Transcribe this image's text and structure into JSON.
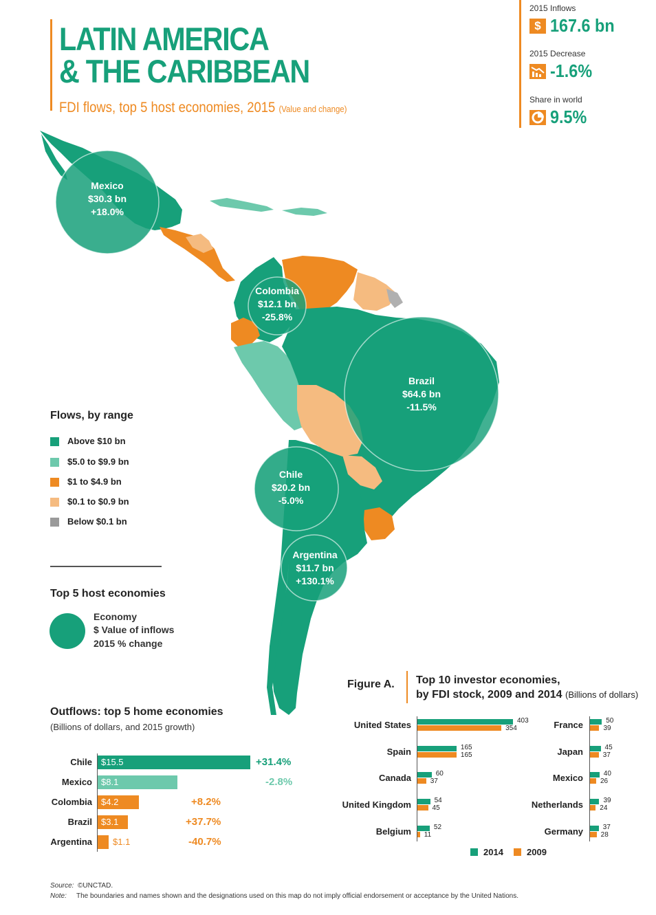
{
  "header": {
    "title_line1": "LATIN AMERICA",
    "title_line2": "& THE CARIBBEAN",
    "subtitle": "FDI flows, top 5 host economies, 2015",
    "subtitle_note": "(Value and change)"
  },
  "stats": [
    {
      "label": "2015 Inflows",
      "value": "167.6 bn",
      "icon": "dollar-icon"
    },
    {
      "label": "2015 Decrease",
      "value": "-1.6%",
      "icon": "decrease-chart-icon"
    },
    {
      "label": "Share in world",
      "value": "9.5%",
      "icon": "pie-share-icon"
    }
  ],
  "colors": {
    "above_10": "#17a07a",
    "range_5_9": "#6dc9ac",
    "range_1_4": "#ee8a22",
    "range_01_09": "#f5bb80",
    "below_01": "#9a9a9a",
    "accent": "#ee8a22",
    "brand": "#17a07a"
  },
  "legend": {
    "title": "Flows, by range",
    "items": [
      {
        "label": "Above $10 bn",
        "color": "#17a07a"
      },
      {
        "label": "$5.0 to $9.9 bn",
        "color": "#6dc9ac"
      },
      {
        "label": "$1 to $4.9 bn",
        "color": "#ee8a22"
      },
      {
        "label": "$0.1 to $0.9 bn",
        "color": "#f5bb80"
      },
      {
        "label": "Below $0.1 bn",
        "color": "#9a9a9a"
      }
    ]
  },
  "top5": {
    "title": "Top 5 host economies",
    "key_lines": [
      "Economy",
      "$ Value of inflows",
      "2015 % change"
    ],
    "economies": [
      {
        "name": "Mexico",
        "value": "$30.3 bn",
        "change": "+18.0%"
      },
      {
        "name": "Colombia",
        "value": "$12.1 bn",
        "change": "-25.8%"
      },
      {
        "name": "Brazil",
        "value": "$64.6 bn",
        "change": "-11.5%"
      },
      {
        "name": "Chile",
        "value": "$20.2 bn",
        "change": "-5.0%"
      },
      {
        "name": "Argentina",
        "value": "$11.7 bn",
        "change": "+130.1%"
      }
    ]
  },
  "chart_data": [
    {
      "type": "bar",
      "title": "Outflows: top 5 home economies",
      "subtitle": "(Billions of dollars, and 2015 growth)",
      "categories": [
        "Chile",
        "Mexico",
        "Colombia",
        "Brazil",
        "Argentina"
      ],
      "values": [
        15.5,
        8.1,
        4.2,
        3.1,
        1.1
      ],
      "value_labels": [
        "$15.5",
        "$8.1",
        "$4.2",
        "$3.1",
        "$1.1"
      ],
      "growth": [
        "+31.4%",
        "-2.8%",
        "+8.2%",
        "+37.7%",
        "-40.7%"
      ],
      "bar_colors": [
        "#17a07a",
        "#6dc9ac",
        "#ee8a22",
        "#ee8a22",
        "#ee8a22"
      ],
      "growth_colors": [
        "#17a07a",
        "#6dc9ac",
        "#ee8a22",
        "#ee8a22",
        "#ee8a22"
      ],
      "orientation": "horizontal"
    },
    {
      "type": "bar",
      "label": "Figure A.",
      "title": "Top 10 investor economies, by FDI stock, 2009 and 2014",
      "title_line1": "Top 10 investor economies,",
      "title_line2": "by FDI stock, 2009 and 2014",
      "units": "(Billions of dollars)",
      "orientation": "horizontal",
      "legend_position": "bottom",
      "categories": [
        "United States",
        "Spain",
        "Canada",
        "United Kingdom",
        "Belgium",
        "France",
        "Japan",
        "Mexico",
        "Netherlands",
        "Germany"
      ],
      "series": [
        {
          "name": "2014",
          "color": "#17a07a",
          "values": [
            403,
            165,
            60,
            54,
            52,
            50,
            45,
            40,
            39,
            37
          ]
        },
        {
          "name": "2009",
          "color": "#ee8a22",
          "values": [
            354,
            165,
            37,
            45,
            11,
            39,
            37,
            26,
            24,
            28
          ]
        }
      ]
    }
  ],
  "footer": {
    "source_label": "Source:",
    "source_text": "©UNCTAD.",
    "note_label": "Note:",
    "note_text": "The boundaries and names shown and the designations used on this map do not imply official endorsement or acceptance by the United Nations."
  }
}
